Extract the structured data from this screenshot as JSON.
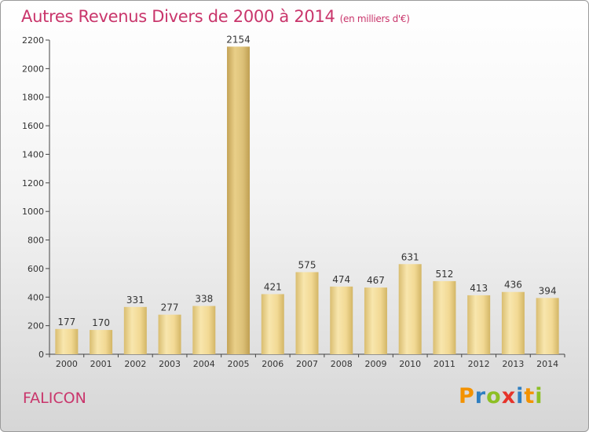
{
  "title": "Autres Revenus Divers de 2000 à 2014",
  "subtitle": "(en milliers d'€)",
  "city": "FALICON",
  "logo": {
    "letters": [
      "P",
      "r",
      "o",
      "x",
      "i",
      "t",
      "i"
    ],
    "colors": [
      "#f39200",
      "#2f7fc1",
      "#8dbf24",
      "#e6332a",
      "#2f7fc1",
      "#f39200",
      "#8dbf24"
    ]
  },
  "colors": {
    "accent": "#c9356b",
    "bar_light": "#f7e3a8",
    "bar_dark": "#d8bc6e",
    "bar_highlight": "#c9a95a"
  },
  "chart_data": {
    "type": "bar",
    "title": "Autres Revenus Divers de 2000 à 2014",
    "xlabel": "",
    "ylabel": "",
    "categories": [
      "2000",
      "2001",
      "2002",
      "2003",
      "2004",
      "2005",
      "2006",
      "2007",
      "2008",
      "2009",
      "2010",
      "2011",
      "2012",
      "2013",
      "2014"
    ],
    "values": [
      177,
      170,
      331,
      277,
      338,
      2154,
      421,
      575,
      474,
      467,
      631,
      512,
      413,
      436,
      394
    ],
    "ylim": [
      0,
      2200
    ],
    "yticks": [
      0,
      200,
      400,
      600,
      800,
      1000,
      1200,
      1400,
      1600,
      1800,
      2000,
      2200
    ],
    "grid": false,
    "legend": "none"
  }
}
